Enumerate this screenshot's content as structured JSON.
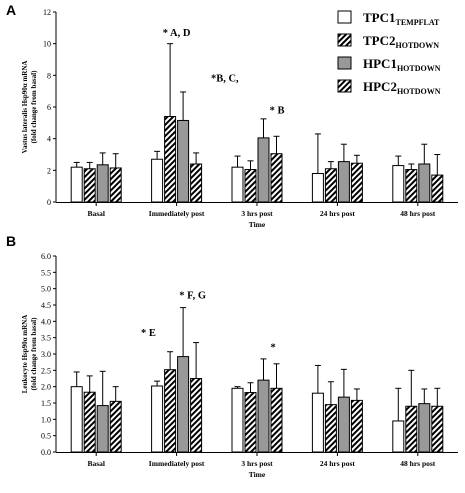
{
  "colors": {
    "s1_fill": "#ffffff",
    "s3_fill": "#999999",
    "stroke": "#000000"
  },
  "legend": [
    {
      "main": "TPC1",
      "sub": "TEMPFLAT",
      "fill": "white"
    },
    {
      "main": "TPC2",
      "sub": "HOTDOWN",
      "fill": "hatch"
    },
    {
      "main": "HPC1",
      "sub": "HOTDOWN",
      "fill": "gray"
    },
    {
      "main": "HPC2",
      "sub": "HOTDOWN",
      "fill": "hatch"
    }
  ],
  "chart_data": [
    {
      "panel": "A",
      "type": "bar",
      "xlabel": "Time",
      "ylabel_line1": "Vastus lateralis Hsp90α mRNA",
      "ylabel_line2": "(fold change from basal)",
      "ylim": [
        0,
        12
      ],
      "yticks": [
        0,
        2,
        4,
        6,
        8,
        10,
        12
      ],
      "categories": [
        "Basal",
        "Immediately post",
        "3 hrs post",
        "24 hrs post",
        "48 hrs post"
      ],
      "series": [
        {
          "name": "TPC1TEMPFLAT",
          "values": [
            2.2,
            2.7,
            2.2,
            1.8,
            2.3
          ],
          "errors": [
            0.3,
            0.5,
            0.7,
            2.5,
            0.6
          ]
        },
        {
          "name": "TPC2HOTDOWN",
          "values": [
            2.1,
            5.4,
            2.05,
            2.1,
            2.05
          ],
          "errors": [
            0.4,
            4.6,
            0.55,
            0.45,
            0.35
          ]
        },
        {
          "name": "HPC1HOTDOWN",
          "values": [
            2.35,
            5.15,
            4.05,
            2.55,
            2.4
          ],
          "errors": [
            0.75,
            1.8,
            1.2,
            1.1,
            1.25
          ]
        },
        {
          "name": "HPC2HOTDOWN",
          "values": [
            2.15,
            2.4,
            3.05,
            2.45,
            1.7
          ],
          "errors": [
            0.9,
            0.7,
            1.1,
            0.5,
            1.3
          ]
        }
      ],
      "annotations": [
        {
          "text": "* A, D",
          "category": 1,
          "y": 10.5
        },
        {
          "text": "*B, C,",
          "category": 1,
          "y": 7.6,
          "offset": 0.6
        },
        {
          "text": "* B",
          "category": 2,
          "y": 5.6,
          "offset": 0.25
        }
      ]
    },
    {
      "panel": "B",
      "type": "bar",
      "xlabel": "Time",
      "ylabel_line1": "Leukocyte Hsp90α mRNA",
      "ylabel_line2": "(fold change from basal)",
      "ylim": [
        0,
        6
      ],
      "yticks": [
        0.0,
        0.5,
        1.0,
        1.5,
        2.0,
        2.5,
        3.0,
        3.5,
        4.0,
        4.5,
        5.0,
        5.5,
        6.0
      ],
      "categories": [
        "Basal",
        "Immediately post",
        "3 hrs post",
        "24 hrs post",
        "48 hrs post"
      ],
      "series": [
        {
          "name": "TPC1TEMPFLAT",
          "values": [
            2.0,
            2.02,
            1.95,
            1.8,
            0.95
          ],
          "errors": [
            0.45,
            0.15,
            0.05,
            0.85,
            1.0
          ]
        },
        {
          "name": "TPC2HOTDOWN",
          "values": [
            1.83,
            2.52,
            1.82,
            1.45,
            1.4
          ],
          "errors": [
            0.5,
            0.55,
            0.3,
            0.7,
            1.1
          ]
        },
        {
          "name": "HPC1HOTDOWN",
          "values": [
            1.42,
            2.92,
            2.2,
            1.68,
            1.48
          ],
          "errors": [
            1.05,
            1.5,
            0.65,
            0.85,
            0.45
          ]
        },
        {
          "name": "HPC2HOTDOWN",
          "values": [
            1.55,
            2.25,
            1.95,
            1.58,
            1.4
          ],
          "errors": [
            0.45,
            1.1,
            0.75,
            0.35,
            0.55
          ]
        }
      ],
      "annotations": [
        {
          "text": "* F, G",
          "category": 1,
          "y": 4.7,
          "offset": 0.2
        },
        {
          "text": "* E",
          "category": 1,
          "y": 3.55,
          "offset": -0.35
        },
        {
          "text": "*",
          "category": 2,
          "y": 3.1,
          "offset": 0.2
        }
      ]
    }
  ]
}
